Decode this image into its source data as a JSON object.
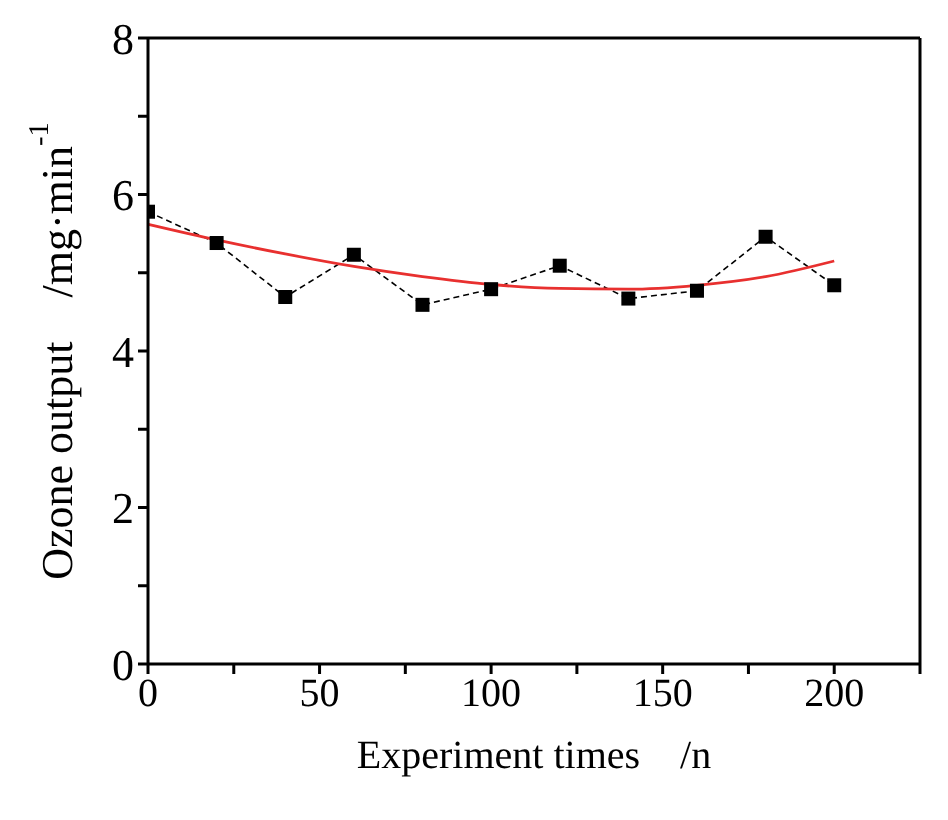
{
  "chart_data": {
    "type": "line",
    "xlabel": "Experiment times    /n",
    "ylabel": "Ozone output    /mg·min$^{-1}$",
    "xlim": [
      0,
      225
    ],
    "xticks": [
      0,
      {
        "value": 25,
        "label": null
      },
      50,
      {
        "value": 75,
        "label": null
      },
      100,
      {
        "value": 125,
        "label": null
      },
      150,
      {
        "value": 175,
        "label": null
      },
      200,
      {
        "value": 225,
        "label": null
      }
    ],
    "ylim": [
      0,
      8
    ],
    "yticks": [
      0,
      {
        "value": 1,
        "label": null
      },
      2,
      {
        "value": 3,
        "label": null
      },
      4,
      {
        "value": 5,
        "label": null
      },
      6,
      {
        "value": 7,
        "label": null
      },
      8
    ],
    "series": [
      {
        "color": "#000000",
        "marker": "square",
        "line_style": "dashed",
        "x": [
          0,
          20,
          40,
          60,
          80,
          100,
          120,
          140,
          160,
          180,
          200
        ],
        "values": [
          5.78,
          5.38,
          4.69,
          5.23,
          4.59,
          4.79,
          5.09,
          4.67,
          4.77,
          5.46,
          4.84
        ]
      },
      {
        "color": "#e8302f",
        "marker": "none",
        "line_style": "solid",
        "x": [
          0,
          20,
          40,
          60,
          80,
          100,
          120,
          140,
          160,
          180,
          200
        ],
        "values": [
          5.62,
          5.42,
          5.24,
          5.08,
          4.95,
          4.85,
          4.8,
          4.79,
          4.84,
          4.95,
          5.15
        ]
      }
    ]
  }
}
